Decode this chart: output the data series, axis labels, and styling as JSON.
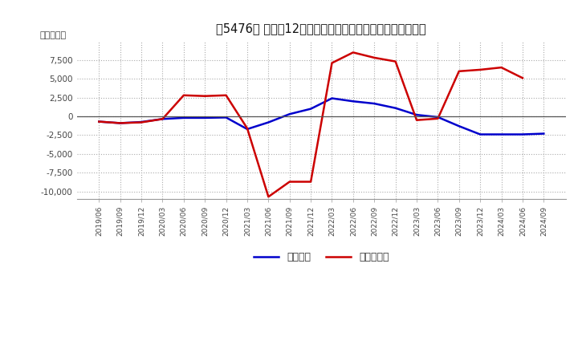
{
  "title": "［5476］ 利益だ12か月移動合計の対前年同期増減額の推移",
  "ylabel": "（百万円）",
  "x_labels": [
    "2019/06",
    "2019/09",
    "2019/12",
    "2020/03",
    "2020/06",
    "2020/09",
    "2020/12",
    "2021/03",
    "2021/06",
    "2021/09",
    "2021/12",
    "2022/03",
    "2022/06",
    "2022/09",
    "2022/12",
    "2023/03",
    "2023/06",
    "2023/09",
    "2023/12",
    "2024/03",
    "2024/06",
    "2024/09"
  ],
  "keijo_rieki": [
    -700,
    -900,
    -750,
    -350,
    -200,
    -200,
    -150,
    -1700,
    -800,
    300,
    1000,
    2400,
    2000,
    1700,
    1100,
    200,
    -100,
    -1300,
    -2400,
    -2400,
    -2400,
    -2300
  ],
  "toki_jun_rieki": [
    -700,
    -900,
    -800,
    -350,
    2800,
    2700,
    2800,
    -1600,
    -10700,
    -8700,
    -8700,
    7100,
    8500,
    7800,
    7300,
    -500,
    -300,
    6000,
    6200,
    6500,
    5100,
    null
  ],
  "keijo_color": "#0000cc",
  "toki_color": "#cc0000",
  "ylim": [
    -11000,
    10000
  ],
  "yticks": [
    -10000,
    -7500,
    -5000,
    -2500,
    0,
    2500,
    5000,
    7500
  ],
  "background_color": "#ffffff",
  "grid_color": "#aaaaaa",
  "legend_keijo": "経常利益",
  "legend_toki": "当期純利益"
}
